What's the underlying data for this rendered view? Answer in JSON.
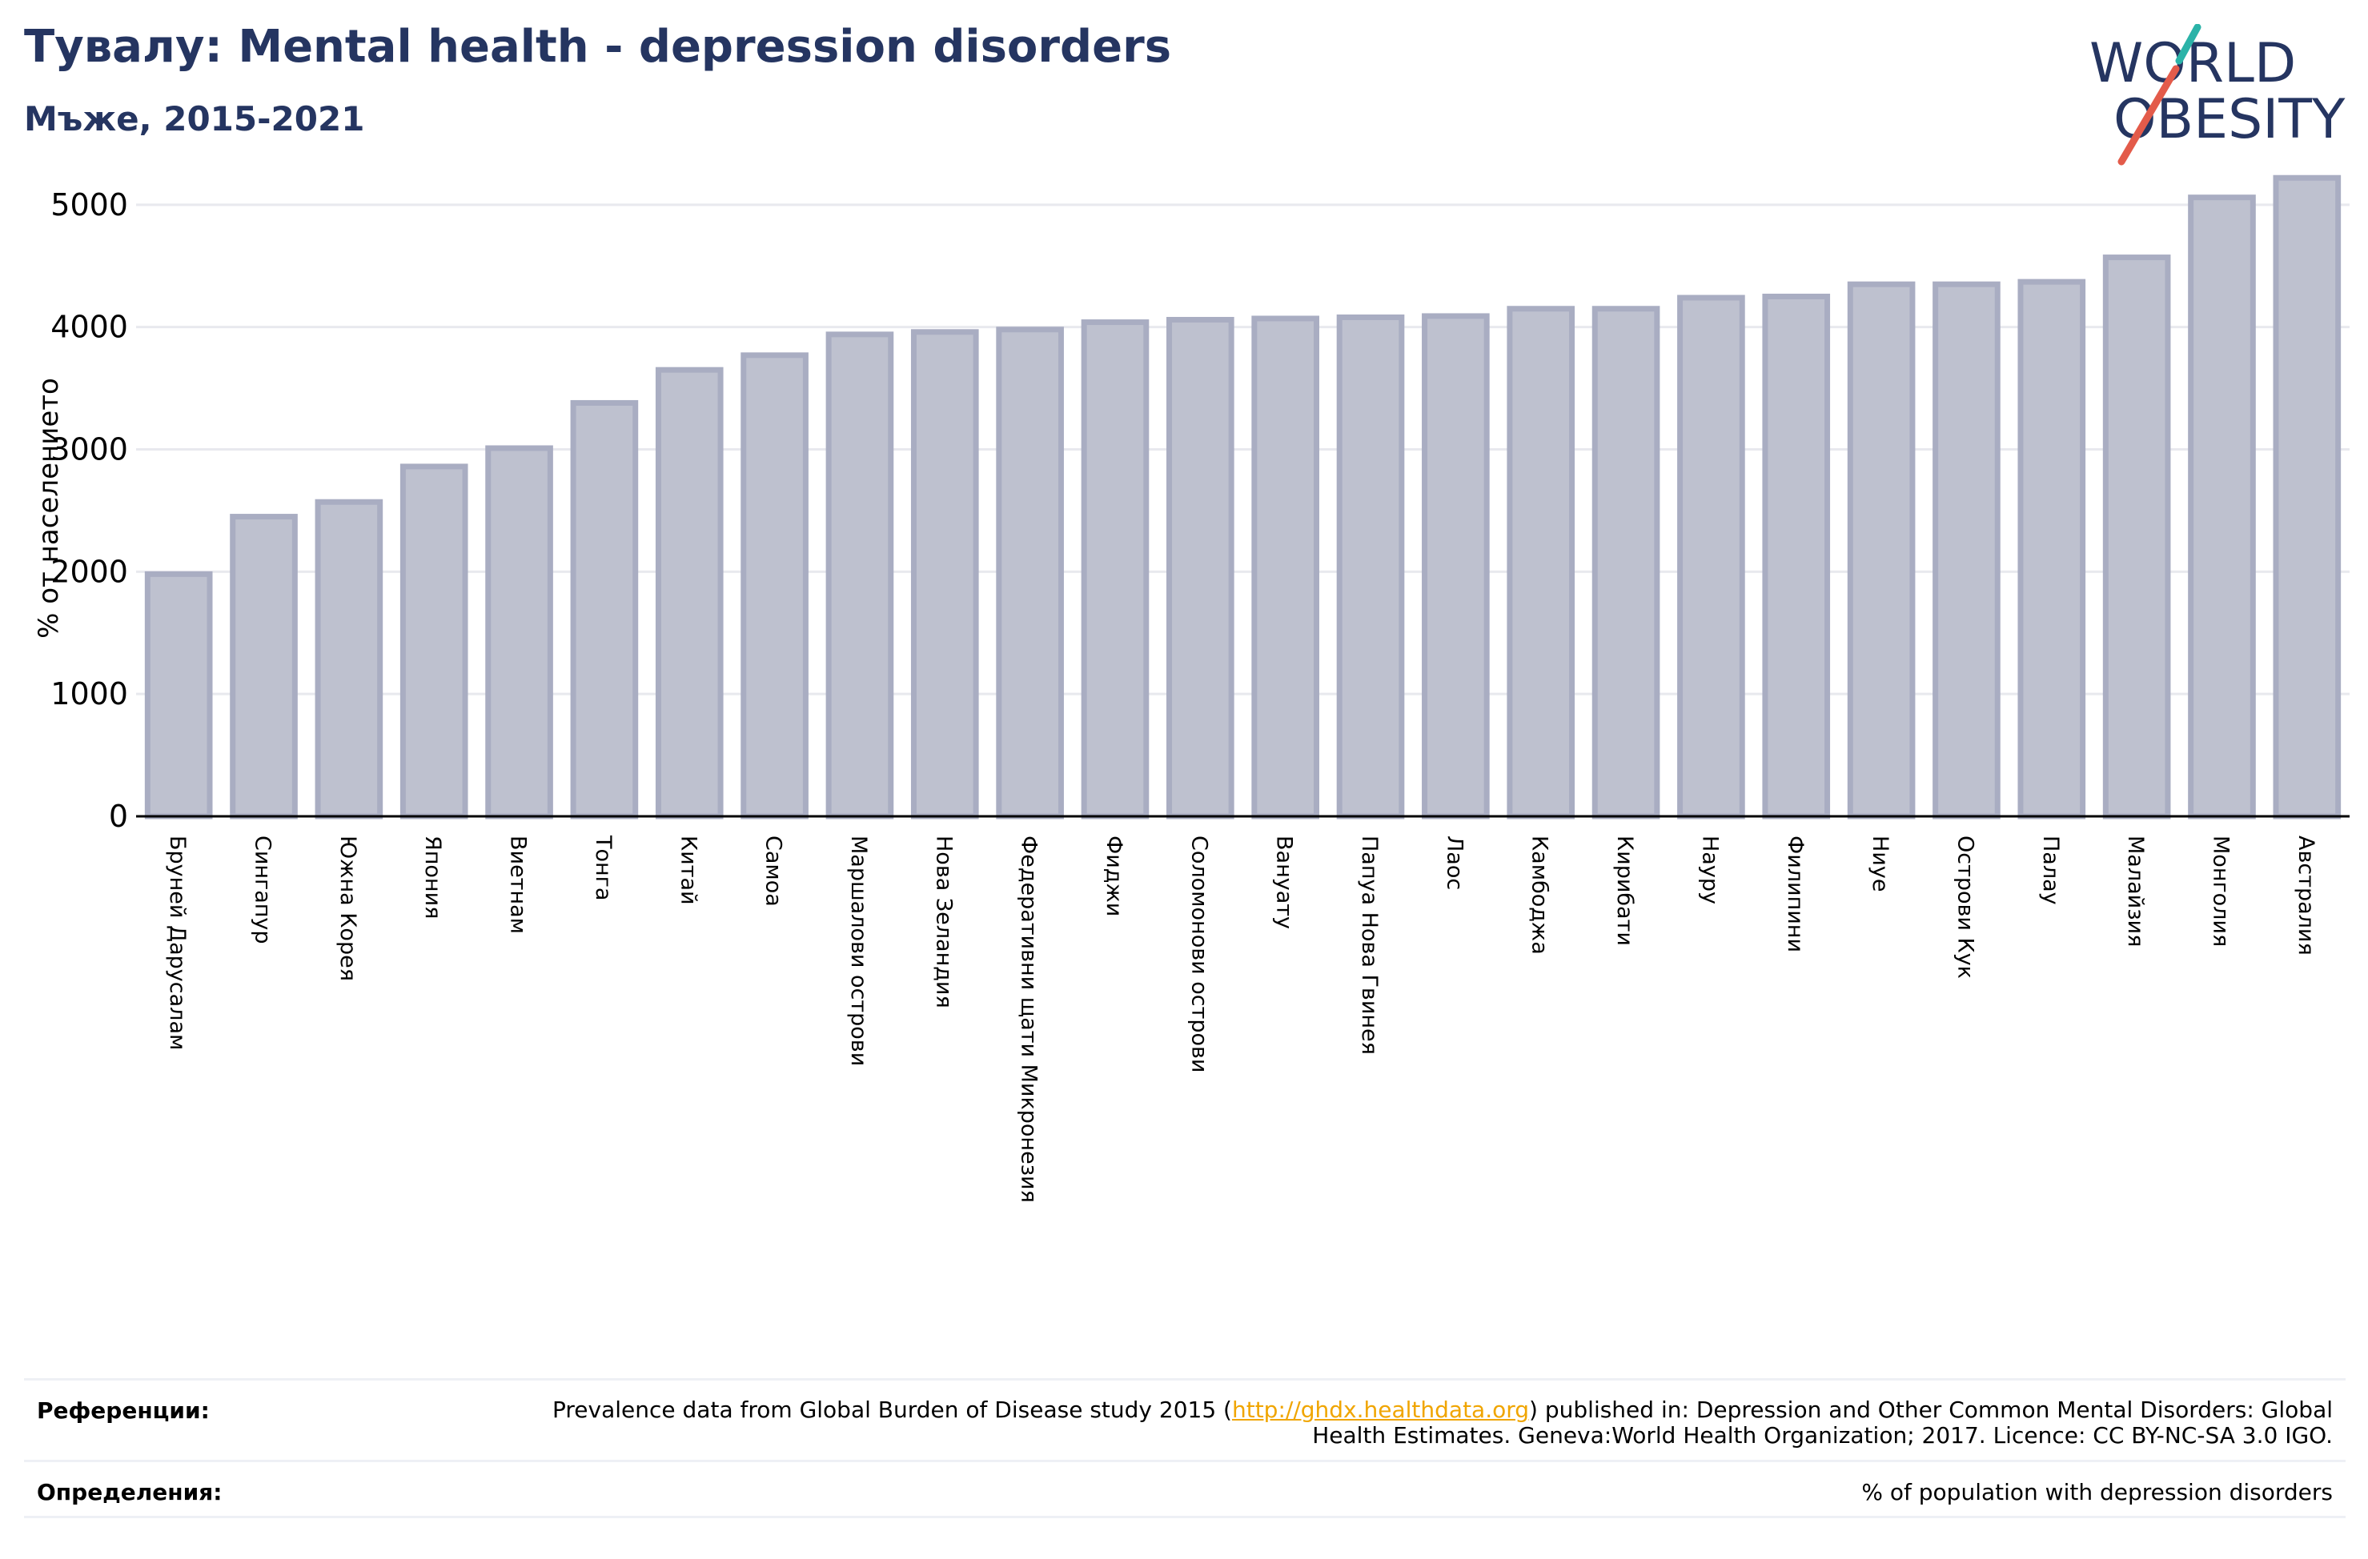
{
  "header": {
    "title": "Тувалу: Mental health - depression disorders",
    "subtitle": "Мъже, 2015-2021"
  },
  "logo": {
    "line1": "WORLD",
    "line2": "OBESITY",
    "accent_teal": "#2bb3a8",
    "accent_red": "#e35b4a",
    "text_color": "#253561"
  },
  "colors": {
    "bar_fill": "#bec1cf",
    "bar_stroke": "#a9adc2",
    "text": "#253561",
    "grid": "#e8e9ee"
  },
  "chart_data": {
    "type": "bar",
    "ylabel": "% от населението",
    "ylim": [
      0,
      5300
    ],
    "yticks": [
      0,
      1000,
      2000,
      3000,
      4000,
      5000
    ],
    "grid": true,
    "categories": [
      "Бруней Дарусалам",
      "Сингапур",
      "Южна Корея",
      "Япония",
      "Виетнам",
      "Тонга",
      "Китай",
      "Самоа",
      "Маршалови острови",
      "Нова Зеландия",
      "Федеративни щати Микронезия",
      "Фиджи",
      "Соломонови острови",
      "Вануату",
      "Папуа Нова Гвинея",
      "Лаос",
      "Камбоджа",
      "Кирибати",
      "Науру",
      "Филипини",
      "Ниуе",
      "Острови Кук",
      "Палау",
      "Малайзия",
      "Монголия",
      "Австралия"
    ],
    "values": [
      1980,
      2450,
      2570,
      2860,
      3010,
      3380,
      3650,
      3770,
      3940,
      3960,
      3980,
      4040,
      4060,
      4070,
      4080,
      4090,
      4150,
      4150,
      4240,
      4250,
      4350,
      4350,
      4370,
      4570,
      5060,
      5220
    ]
  },
  "footer": {
    "references_label": "Референции:",
    "references_pre": "Prevalence data from Global Burden of Disease study 2015 (",
    "references_link": "http://ghdx.healthdata.org",
    "references_post": ") published in: Depression and Other Common Mental Disorders: Global Health Estimates. Geneva:World Health Organization; 2017. Licence: CC BY-NC-SA 3.0 IGO.",
    "definitions_label": "Определения:",
    "definitions_text": "% of population with depression disorders"
  }
}
